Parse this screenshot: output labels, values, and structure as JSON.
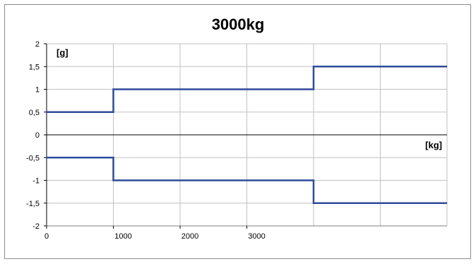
{
  "chart_data": {
    "type": "line",
    "title": "3000kg",
    "ylabel": "[g]",
    "xlabel": "[kg]",
    "xlim": [
      0,
      6000
    ],
    "ylim": [
      -2,
      2
    ],
    "grid": true,
    "x_ticks": [
      0,
      1000,
      2000,
      3000
    ],
    "x_tick_labels": [
      "0",
      "1000",
      "2000",
      "3000"
    ],
    "y_ticks": [
      2,
      1.5,
      1,
      0.5,
      0,
      -0.5,
      -1,
      -1.5,
      -2
    ],
    "y_tick_labels": [
      "2",
      "1,5",
      "1",
      "0,5",
      "0",
      "-0,5",
      "-1",
      "-1,5",
      "-2"
    ],
    "series": [
      {
        "x": [
          0,
          1000,
          1000,
          4000,
          4000,
          6000
        ],
        "y": [
          0.5,
          0.5,
          1,
          1,
          1.5,
          1.5
        ]
      },
      {
        "x": [
          0,
          1000,
          1000,
          4000,
          4000,
          6000
        ],
        "y": [
          -0.5,
          -0.5,
          -1,
          -1,
          -1.5,
          -1.5
        ]
      }
    ],
    "series_color": "#2e4b9b",
    "grid_color": "#c0c0c0"
  }
}
